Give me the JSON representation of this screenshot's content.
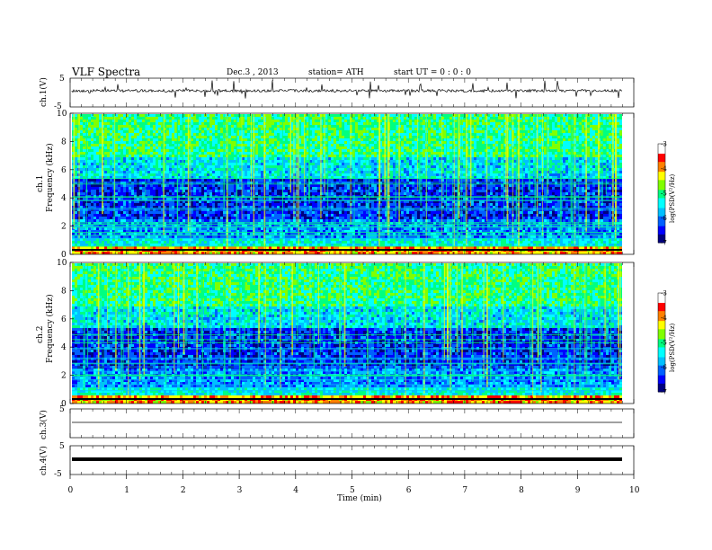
{
  "header": {
    "title": "VLF  Spectra",
    "date": "Dec.3  , 2013",
    "station": "station= ATH",
    "start": "start  UT  =    0 : 0  : 0"
  },
  "chart_data": [
    {
      "type": "line",
      "id": "ch1",
      "ylabel": "ch.1(V)",
      "yticks": [
        "5",
        "-5"
      ],
      "ylim": [
        -5,
        5
      ],
      "description": "noisy time series around 0 V with sparse spikes",
      "xlim": [
        0,
        10
      ]
    },
    {
      "type": "heatmap",
      "id": "spec1",
      "ylabel_line1": "ch.1",
      "ylabel_line2": "Frequency  (kHz)",
      "yticks": [
        "0",
        "2",
        "4",
        "6",
        "8",
        "10"
      ],
      "ylim": [
        0,
        10
      ],
      "xlim": [
        0,
        9.8
      ],
      "colorbar": {
        "label": "log(PSD(V²/Hz)",
        "ticks": [
          "-3",
          "-4",
          "-5",
          "-6",
          "-7"
        ],
        "range": [
          -7,
          -3
        ]
      },
      "colors": [
        "#00008b",
        "#0000ff",
        "#0080ff",
        "#00ffff",
        "#00ff80",
        "#80ff00",
        "#ffff00",
        "#ff8000",
        "#ff0000",
        "#ffffff"
      ]
    },
    {
      "type": "heatmap",
      "id": "spec2",
      "ylabel_line1": "ch.2",
      "ylabel_line2": "Frequency  (kHz)",
      "yticks": [
        "0",
        "2",
        "4",
        "6",
        "8",
        "10"
      ],
      "ylim": [
        0,
        10
      ],
      "xlim": [
        0,
        9.8
      ],
      "colorbar": {
        "label": "log(PSD(V²/Hz)",
        "ticks": [
          "-3",
          "-4",
          "-5",
          "-6",
          "-7"
        ],
        "range": [
          -7,
          -3
        ]
      }
    },
    {
      "type": "line",
      "id": "ch3",
      "ylabel": "ch.3(V)",
      "yticks": [
        "5"
      ],
      "ylim": [
        -5,
        5
      ],
      "description": "flat trace near 0 V"
    },
    {
      "type": "line",
      "id": "ch4",
      "ylabel": "ch.4(V)",
      "yticks": [
        "5",
        "-5"
      ],
      "ylim": [
        -5,
        5
      ],
      "description": "thick flat trace near 0 V"
    }
  ],
  "xaxis": {
    "label": "Time  (min)",
    "ticks": [
      "0",
      "1",
      "2",
      "3",
      "4",
      "5",
      "6",
      "7",
      "8",
      "9",
      "10"
    ],
    "xlim": [
      0,
      10
    ]
  }
}
